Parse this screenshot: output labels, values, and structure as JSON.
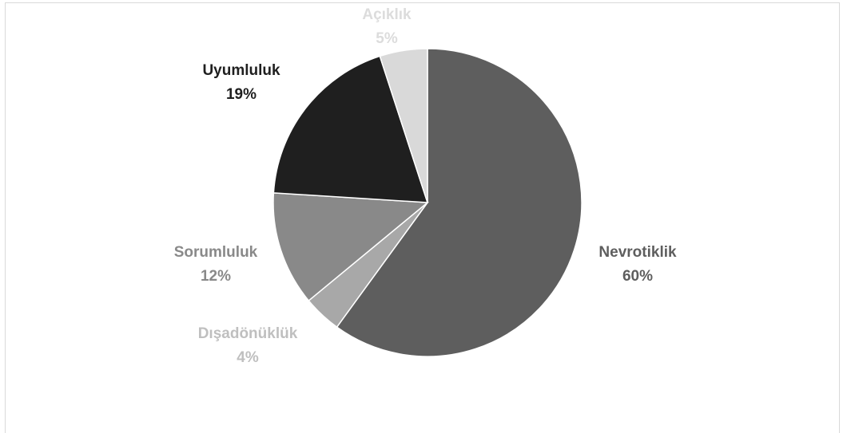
{
  "chart_data": {
    "type": "pie",
    "title": "",
    "start_angle_deg": 0,
    "direction": "clockwise",
    "slices": [
      {
        "key": "nevrotiklik",
        "label": "Nevrotiklik",
        "value": 60,
        "value_label": "60%",
        "color": "#5e5e5e",
        "label_color": "#5e5e5e"
      },
      {
        "key": "disadonukluk",
        "label": "Dışadönüklük",
        "value": 4,
        "value_label": "4%",
        "color": "#a8a8a8",
        "label_color": "#bfbfbf"
      },
      {
        "key": "sorumluluk",
        "label": "Sorumluluk",
        "value": 12,
        "value_label": "12%",
        "color": "#898989",
        "label_color": "#898989"
      },
      {
        "key": "uyumluluk",
        "label": "Uyumluluk",
        "value": 19,
        "value_label": "19%",
        "color": "#1f1f1f",
        "label_color": "#1f1f1f"
      },
      {
        "key": "aciklik",
        "label": "Açıklık",
        "value": 5,
        "value_label": "5%",
        "color": "#d9d9d9",
        "label_color": "#dcdcdc"
      }
    ]
  }
}
